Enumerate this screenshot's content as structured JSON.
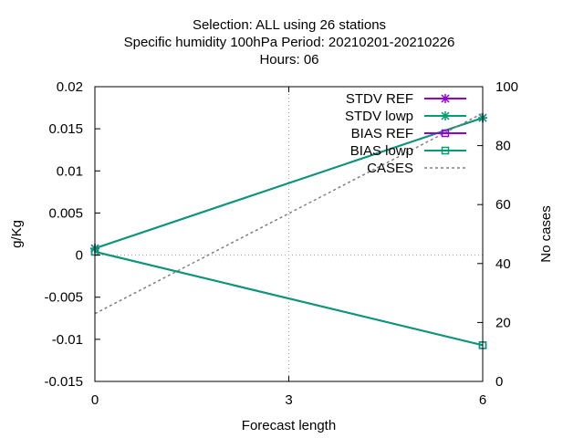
{
  "chart_data": {
    "type": "line",
    "title_lines": [
      "Selection: ALL using    26 stations",
      "Specific humidity 100hPa   Period: 20210201-20210226",
      "Hours:  06"
    ],
    "xlabel": "Forecast length",
    "ylabel": "g/Kg",
    "y2label": "No cases",
    "xlim": [
      0,
      6
    ],
    "ylim": [
      -0.015,
      0.02
    ],
    "y2lim": [
      0,
      100
    ],
    "x_ticks": [
      "0",
      "3",
      "6"
    ],
    "y_ticks": [
      "0.02",
      "0.015",
      "0.01",
      "0.005",
      "0",
      "-0.005",
      "-0.01",
      "-0.015"
    ],
    "y2_ticks": [
      "100",
      "80",
      "60",
      "40",
      "20",
      "0"
    ],
    "grid": true,
    "legend_position": "top-right",
    "series": [
      {
        "name": "STDV REF",
        "axis": "y",
        "color": "#9400d3",
        "marker": "star",
        "dash": false,
        "x": [
          0,
          6
        ],
        "y": [
          0.0008,
          0.0163
        ]
      },
      {
        "name": "STDV lowp",
        "axis": "y",
        "color": "#009e73",
        "marker": "star",
        "dash": false,
        "x": [
          0,
          6
        ],
        "y": [
          0.0008,
          0.0163
        ]
      },
      {
        "name": "BIAS REF",
        "axis": "y",
        "color": "#9400d3",
        "marker": "square",
        "dash": false,
        "x": [
          0,
          6
        ],
        "y": [
          0.0004,
          -0.0107
        ]
      },
      {
        "name": "BIAS lowp",
        "axis": "y",
        "color": "#009e73",
        "marker": "square",
        "dash": false,
        "x": [
          0,
          6
        ],
        "y": [
          0.0004,
          -0.0107
        ]
      },
      {
        "name": "CASES",
        "axis": "y2",
        "color": "#808080",
        "marker": "none",
        "dash": true,
        "x": [
          0,
          6
        ],
        "y": [
          23,
          91
        ]
      }
    ]
  }
}
